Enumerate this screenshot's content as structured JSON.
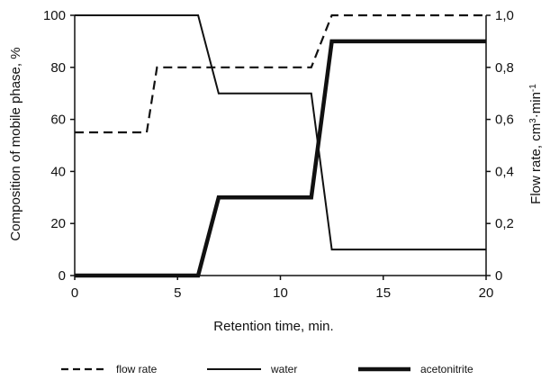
{
  "chart_data": {
    "type": "line",
    "xlabel": "Retention time,  min.",
    "ylabel_left": "Composition of mobile phase, %",
    "ylabel_right_main": "Flow rate,  cm",
    "ylabel_right_sup1": "3",
    "ylabel_right_mid": "·min",
    "ylabel_right_sup2": "-1",
    "xlim": [
      0,
      20
    ],
    "ylim_left": [
      0,
      100
    ],
    "ylim_right": [
      0,
      1.0
    ],
    "x_ticks": [
      "0",
      "5",
      "10",
      "15",
      "20"
    ],
    "y_left_ticks": [
      "0",
      "20",
      "40",
      "60",
      "80",
      "100"
    ],
    "y_right_ticks": [
      "0",
      "0,2",
      "0,4",
      "0,6",
      "0,8",
      "1,0"
    ],
    "legend_position": "bottom",
    "series": [
      {
        "name": "flow rate",
        "axis": "right",
        "style": "dashed",
        "x": [
          0,
          3.5,
          4,
          11.5,
          12.5,
          20
        ],
        "y": [
          0.55,
          0.55,
          0.8,
          0.8,
          1.0,
          1.0
        ]
      },
      {
        "name": "water",
        "axis": "left",
        "style": "thin",
        "x": [
          0,
          6,
          7,
          11.5,
          12.5,
          20
        ],
        "y": [
          100,
          100,
          70,
          70,
          10,
          10
        ]
      },
      {
        "name": "acetonitrite",
        "axis": "left",
        "style": "thick",
        "x": [
          0,
          6,
          7,
          11.5,
          12.5,
          20
        ],
        "y": [
          0,
          0,
          30,
          30,
          90,
          90
        ]
      }
    ]
  },
  "colors": {
    "line": "#111111",
    "background": "#ffffff"
  }
}
